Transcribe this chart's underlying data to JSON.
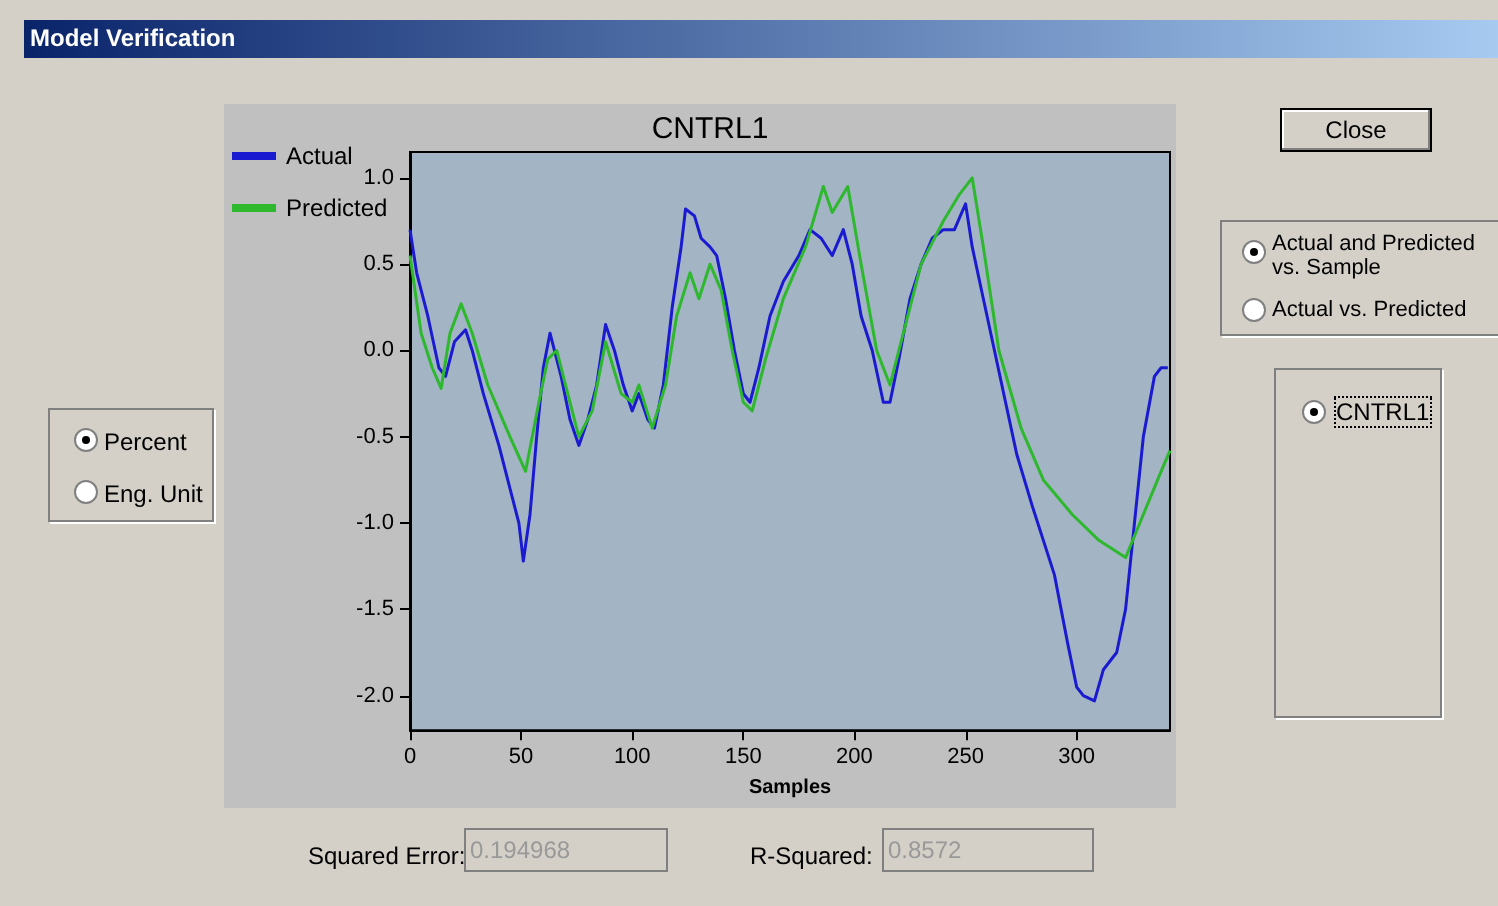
{
  "chart_data": {
    "type": "line",
    "title": "CNTRL1",
    "xlabel": "Samples",
    "xlim": [
      0,
      342
    ],
    "xticks": [
      0,
      50,
      100,
      150,
      200,
      250,
      300
    ],
    "ylim": [
      -2.2,
      1.15
    ],
    "yticks": [
      {
        "value": -2,
        "label": "-2.0"
      },
      {
        "value": -1.5,
        "label": "-1.5"
      },
      {
        "value": -1,
        "label": "-1.0"
      },
      {
        "value": -0.5,
        "label": "-0.5"
      },
      {
        "value": 0,
        "label": "0.0"
      },
      {
        "value": 0.5,
        "label": "0.5"
      },
      {
        "value": 1,
        "label": "1.0"
      }
    ],
    "grid": false,
    "legend": "top left",
    "marker": "none",
    "line_style": "solid",
    "series": [
      {
        "name": "Actual",
        "color": "#1a1ad0",
        "x": [
          0,
          3,
          8,
          13,
          16,
          20,
          25,
          28,
          33,
          40,
          45,
          49,
          51,
          54,
          57,
          60,
          63,
          65,
          68,
          72,
          76,
          80,
          84,
          88,
          92,
          96,
          100,
          103,
          107,
          110,
          114,
          118,
          122,
          124,
          128,
          131,
          135,
          138,
          142,
          146,
          150,
          153,
          157,
          162,
          168,
          175,
          180,
          185,
          190,
          195,
          199,
          203,
          208,
          213,
          216,
          220,
          225,
          230,
          235,
          240,
          245,
          250,
          253,
          258,
          263,
          268,
          273,
          280,
          290,
          296,
          300,
          303,
          308,
          312,
          318,
          322,
          326,
          330,
          335,
          338,
          341
        ],
        "values": [
          0.7,
          0.45,
          0.2,
          -0.1,
          -0.15,
          0.05,
          0.12,
          0.0,
          -0.25,
          -0.55,
          -0.8,
          -1.0,
          -1.22,
          -0.95,
          -0.5,
          -0.1,
          0.1,
          0.0,
          -0.15,
          -0.4,
          -0.55,
          -0.4,
          -0.2,
          0.15,
          0.0,
          -0.2,
          -0.35,
          -0.25,
          -0.4,
          -0.45,
          -0.2,
          0.25,
          0.6,
          0.82,
          0.78,
          0.65,
          0.6,
          0.55,
          0.3,
          0.0,
          -0.25,
          -0.3,
          -0.1,
          0.2,
          0.4,
          0.55,
          0.7,
          0.65,
          0.55,
          0.7,
          0.5,
          0.2,
          0.0,
          -0.3,
          -0.3,
          -0.05,
          0.3,
          0.5,
          0.65,
          0.7,
          0.7,
          0.85,
          0.6,
          0.3,
          0.0,
          -0.3,
          -0.6,
          -0.9,
          -1.3,
          -1.7,
          -1.95,
          -2.0,
          -2.03,
          -1.85,
          -1.75,
          -1.5,
          -1.0,
          -0.5,
          -0.15,
          -0.1,
          -0.1
        ]
      },
      {
        "name": "Predicted",
        "color": "#2db82d",
        "x": [
          0,
          5,
          10,
          14,
          18,
          23,
          28,
          35,
          45,
          52,
          58,
          62,
          66,
          70,
          76,
          82,
          88,
          95,
          100,
          103,
          109,
          115,
          120,
          126,
          130,
          135,
          140,
          145,
          150,
          154,
          160,
          168,
          178,
          186,
          190,
          197,
          203,
          210,
          216,
          222,
          230,
          240,
          247,
          253,
          258,
          265,
          275,
          285,
          298,
          310,
          322,
          330,
          338,
          342
        ],
        "values": [
          0.55,
          0.1,
          -0.1,
          -0.22,
          0.1,
          0.27,
          0.1,
          -0.2,
          -0.5,
          -0.7,
          -0.3,
          -0.05,
          0.0,
          -0.2,
          -0.5,
          -0.35,
          0.05,
          -0.25,
          -0.3,
          -0.2,
          -0.45,
          -0.2,
          0.2,
          0.45,
          0.3,
          0.5,
          0.35,
          0.0,
          -0.3,
          -0.35,
          -0.05,
          0.3,
          0.6,
          0.95,
          0.8,
          0.95,
          0.5,
          0.0,
          -0.2,
          0.1,
          0.5,
          0.75,
          0.9,
          1.0,
          0.6,
          0.0,
          -0.45,
          -0.75,
          -0.95,
          -1.1,
          -1.2,
          -0.95,
          -0.7,
          -0.58
        ]
      }
    ],
    "annotations": [
      "Model Verification",
      "Close",
      "Actual and Predicted vs. Sample",
      "Actual vs. Predicted",
      "Percent",
      "Eng. Unit",
      "CNTRL1",
      "Squared Error:",
      "0.194968",
      "R-Squared:",
      "0.8572"
    ]
  }
}
